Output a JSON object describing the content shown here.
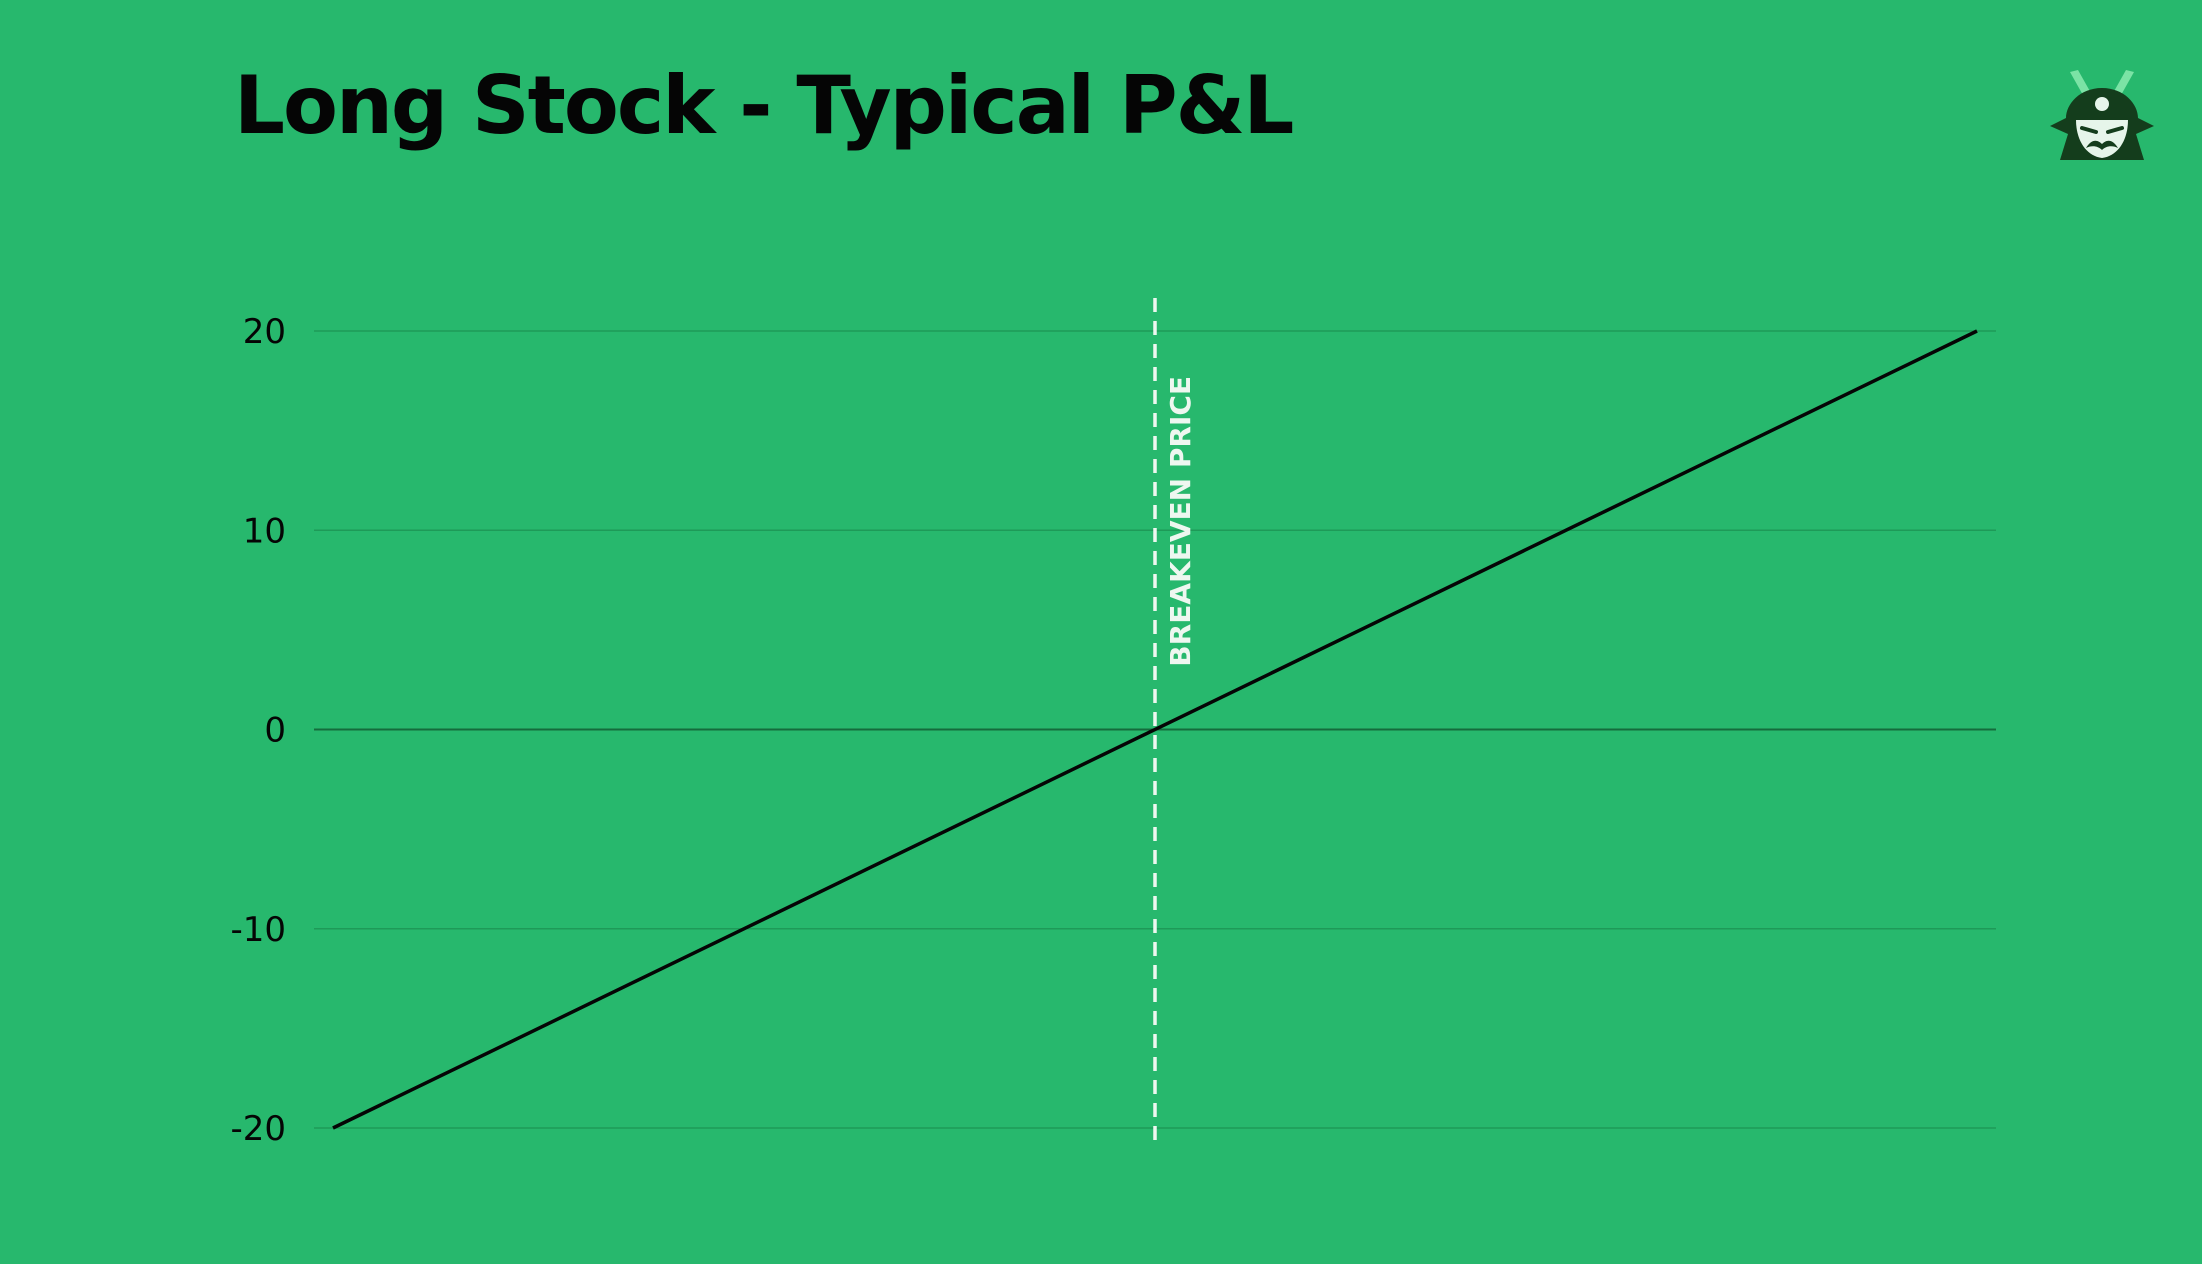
{
  "colors": {
    "background": "#27b86d",
    "text": "#050505",
    "gridline": "#1e9a58",
    "zero_line": "#146b3c",
    "series_line": "#050505",
    "breakeven_line": "#eef7f0",
    "logo_dark": "#143d1c",
    "logo_light": "#e6f5ea",
    "logo_accent": "#7be3a5"
  },
  "logo": {
    "icon": "samurai-mascot-icon"
  },
  "chart_data": {
    "type": "line",
    "title": "Long Stock - Typical P&L",
    "xlabel": "",
    "ylabel": "",
    "xlim": [
      0,
      100
    ],
    "ylim": [
      -20,
      20
    ],
    "yticks": [
      "20",
      "10",
      "0",
      "-10",
      "-20"
    ],
    "ytick_values": [
      20,
      10,
      0,
      -10,
      -20
    ],
    "grid": true,
    "legend": "none",
    "series": [
      {
        "x": [
          0,
          100
        ],
        "values": [
          -20,
          20
        ]
      }
    ],
    "annotations": [
      {
        "type": "vertical-dashed-line",
        "x": 50,
        "label": "BREAKEVEN PRICE"
      }
    ]
  }
}
